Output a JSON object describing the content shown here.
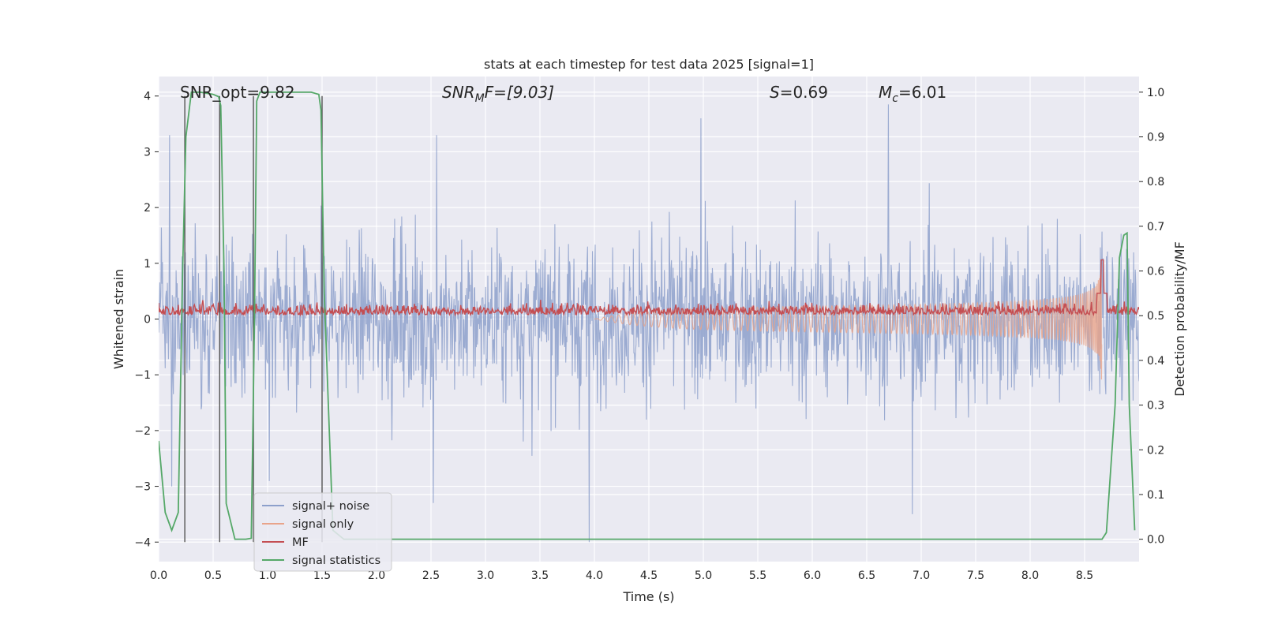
{
  "chart_data": {
    "type": "line",
    "title": "stats at each timestep for test data 2025 [signal=1]",
    "xlabel": "Time (s)",
    "ylabel_left": "Whitened strain",
    "ylabel_right": "Detection probability/MF",
    "xlim": [
      0.0,
      9.0
    ],
    "ylim_left": [
      -4.35,
      4.35
    ],
    "ylim_right": [
      -0.05,
      1.035
    ],
    "x_ticks": [
      0.0,
      0.5,
      1.0,
      1.5,
      2.0,
      2.5,
      3.0,
      3.5,
      4.0,
      4.5,
      5.0,
      5.5,
      6.0,
      6.5,
      7.0,
      7.5,
      8.0,
      8.5
    ],
    "x_tick_labels": [
      "0.0",
      "0.5",
      "1.0",
      "1.5",
      "2.0",
      "2.5",
      "3.0",
      "3.5",
      "4.0",
      "4.5",
      "5.0",
      "5.5",
      "6.0",
      "6.5",
      "7.0",
      "7.5",
      "8.0",
      "8.5"
    ],
    "y_left_ticks": [
      -4,
      -3,
      -2,
      -1,
      0,
      1,
      2,
      3,
      4
    ],
    "y_left_tick_labels": [
      "−4",
      "−3",
      "−2",
      "−1",
      "0",
      "1",
      "2",
      "3",
      "4"
    ],
    "y_right_ticks": [
      0.0,
      0.1,
      0.2,
      0.3,
      0.4,
      0.5,
      0.6,
      0.7,
      0.8,
      0.9,
      1.0
    ],
    "y_right_tick_labels": [
      "0.0",
      "0.1",
      "0.2",
      "0.3",
      "0.4",
      "0.5",
      "0.6",
      "0.7",
      "0.8",
      "0.9",
      "1.0"
    ],
    "annotations": {
      "snr_opt": "SNR_opt=9.82",
      "snr_mf_prefix": "SNR",
      "snr_mf_sub": "M",
      "snr_mf_suffix": "F=[9.03]",
      "s_prefix": "S",
      "s_suffix": "=0.69",
      "mc_prefix": "M",
      "mc_sub": "c",
      "mc_suffix": "=6.01"
    },
    "legend": {
      "location": "lower-left",
      "entries": [
        {
          "label": "signal+ noise",
          "color": "#8da0cb"
        },
        {
          "label": "signal only",
          "color": "#e9a48a"
        },
        {
          "label": "MF",
          "color": "#c44e52"
        },
        {
          "label": "signal statistics",
          "color": "#55a868"
        }
      ]
    },
    "series": [
      {
        "name": "signal+ noise",
        "kind": "noise",
        "axis": "left",
        "color": "#8da0cb",
        "typical_band": [
          -1.6,
          1.6
        ],
        "min": -4.0,
        "max": 4.0,
        "peaks": [
          {
            "x": 3.95,
            "y": -4.0
          },
          {
            "x": 6.7,
            "y": 3.85
          },
          {
            "x": 4.98,
            "y": 3.6
          },
          {
            "x": 2.55,
            "y": 3.3
          },
          {
            "x": 6.92,
            "y": -3.5
          },
          {
            "x": 2.52,
            "y": -3.3
          },
          {
            "x": 0.1,
            "y": 3.3
          },
          {
            "x": 0.12,
            "y": -3.0
          }
        ]
      },
      {
        "name": "signal only",
        "kind": "chirp",
        "axis": "left",
        "color": "#e9a48a",
        "start_time": 4.0,
        "merger_time": 8.66,
        "peak_amplitude": 1.2
      },
      {
        "name": "MF",
        "kind": "noise",
        "axis": "right",
        "color": "#c44e52",
        "baseline": 0.51,
        "spread": 0.02,
        "peak": {
          "x": 8.66,
          "y": 0.625
        }
      },
      {
        "name": "signal statistics",
        "kind": "line",
        "axis": "right",
        "color": "#55a868",
        "x": [
          0.0,
          0.06,
          0.12,
          0.18,
          0.22,
          0.25,
          0.3,
          0.32,
          0.38,
          0.5,
          0.55,
          0.57,
          0.6,
          0.62,
          0.7,
          0.8,
          0.85,
          0.88,
          0.9,
          0.93,
          0.95,
          1.0,
          1.2,
          1.4,
          1.47,
          1.49,
          1.52,
          1.6,
          1.7,
          2.0,
          3.0,
          4.0,
          5.0,
          6.0,
          7.0,
          8.0,
          8.5,
          8.66,
          8.7,
          8.78,
          8.82,
          8.86,
          8.89,
          8.91,
          8.96
        ],
        "y": [
          0.22,
          0.06,
          0.02,
          0.06,
          0.6,
          0.9,
          1.0,
          1.0,
          1.0,
          0.995,
          0.99,
          0.97,
          0.6,
          0.08,
          0.0,
          0.0,
          0.002,
          0.5,
          0.98,
          1.0,
          1.0,
          1.0,
          1.0,
          1.0,
          0.995,
          0.96,
          0.55,
          0.02,
          0.0,
          0.0,
          0.0,
          0.0,
          0.0,
          0.0,
          0.0,
          0.0,
          0.0,
          0.0,
          0.015,
          0.3,
          0.63,
          0.68,
          0.685,
          0.3,
          0.02
        ]
      },
      {
        "name": "markers",
        "kind": "vlines",
        "axis": "left",
        "color": "#555555",
        "x": [
          0.24,
          0.56,
          0.87,
          1.5
        ],
        "y_range": [
          -4.0,
          4.0
        ]
      }
    ]
  }
}
